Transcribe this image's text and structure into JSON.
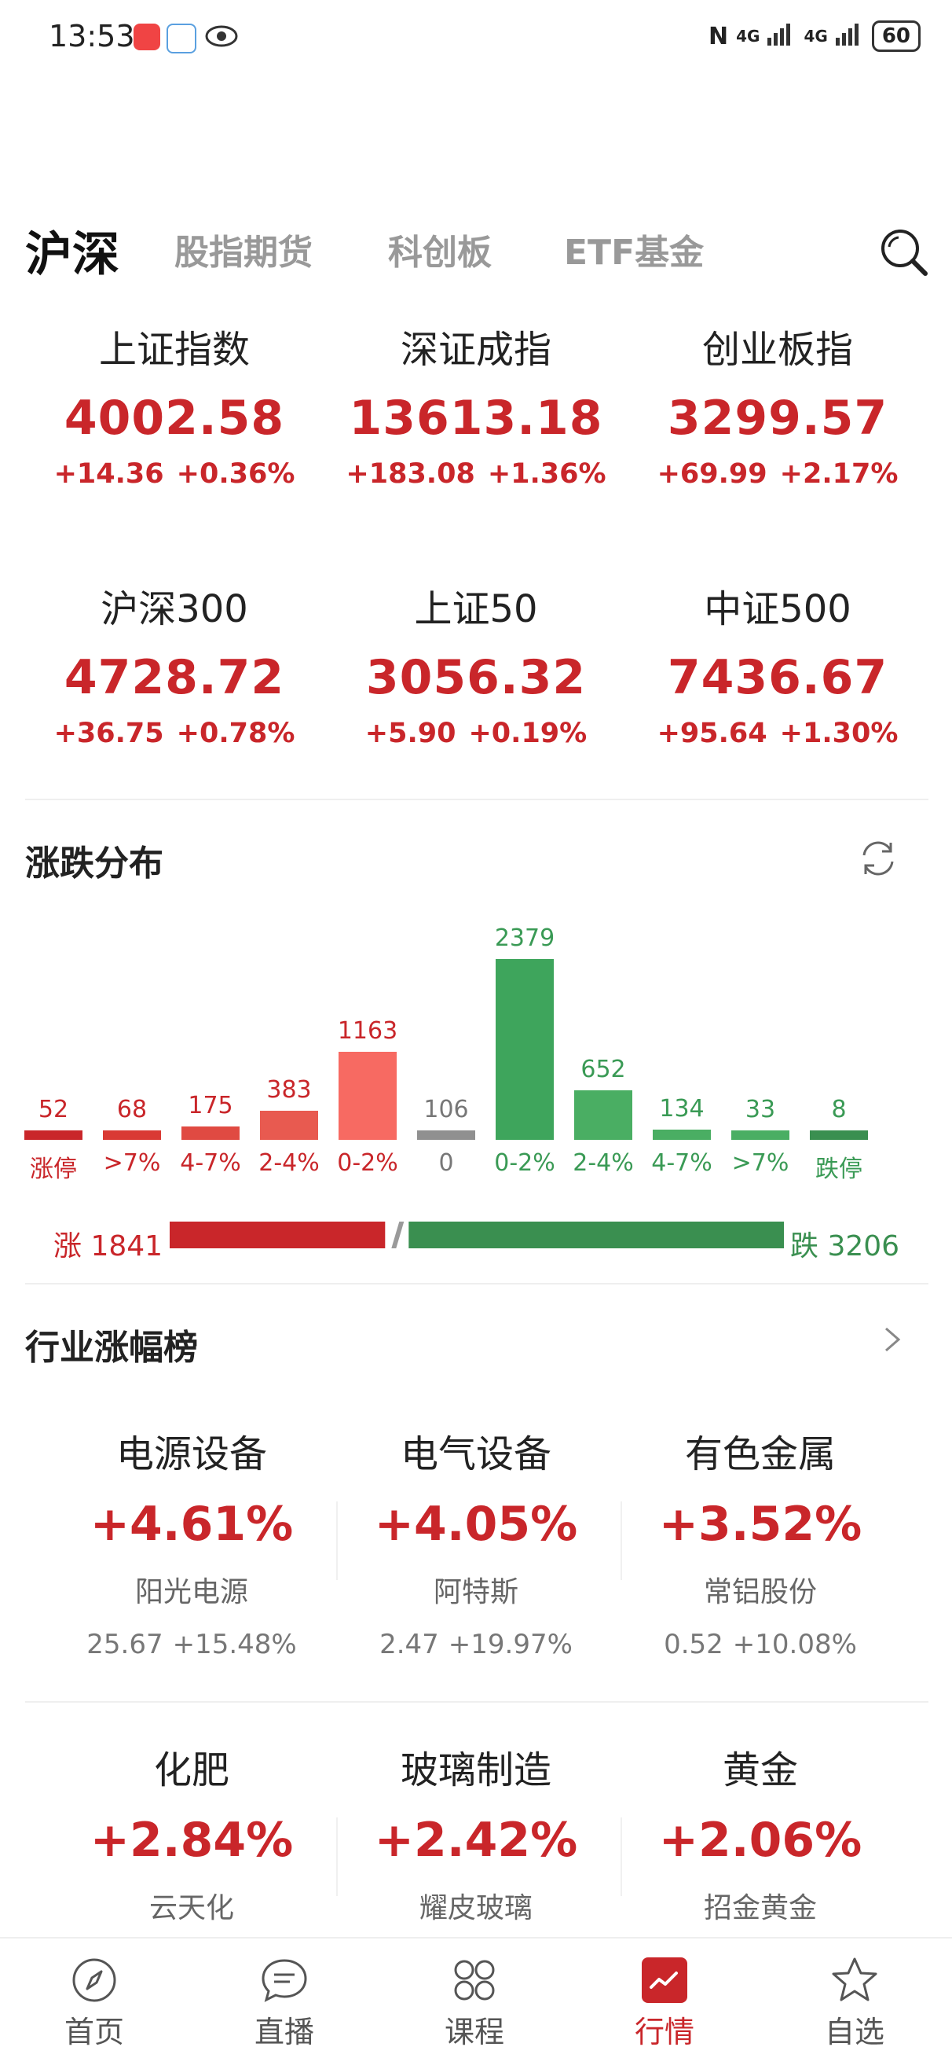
{
  "status_bar": {
    "time": "13:53",
    "network_1": "4G",
    "network_2": "4G",
    "battery": "60"
  },
  "tabs": [
    {
      "label": "沪深",
      "active": true
    },
    {
      "label": "股指期货",
      "active": false
    },
    {
      "label": "科创板",
      "active": false
    },
    {
      "label": "ETF基金",
      "active": false
    }
  ],
  "indices": [
    {
      "name": "上证指数",
      "value": "4002.58",
      "change": "+14.36",
      "pct": "+0.36%"
    },
    {
      "name": "深证成指",
      "value": "13613.18",
      "change": "+183.08",
      "pct": "+1.36%"
    },
    {
      "name": "创业板指",
      "value": "3299.57",
      "change": "+69.99",
      "pct": "+2.17%"
    },
    {
      "name": "沪深300",
      "value": "4728.72",
      "change": "+36.75",
      "pct": "+0.78%"
    },
    {
      "name": "上证50",
      "value": "3056.32",
      "change": "+5.90",
      "pct": "+0.19%"
    },
    {
      "name": "中证500",
      "value": "7436.67",
      "change": "+95.64",
      "pct": "+1.30%"
    }
  ],
  "distribution": {
    "title": "涨跌分布",
    "rise_label": "涨",
    "rise_count": "1841",
    "fall_label": "跌",
    "fall_count": "3206"
  },
  "chart_data": {
    "type": "bar",
    "categories": [
      "涨停",
      ">7%",
      "4-7%",
      "2-4%",
      "0-2%",
      "0",
      "0-2%",
      "2-4%",
      "4-7%",
      ">7%",
      "跌停"
    ],
    "values": [
      52,
      68,
      175,
      383,
      1163,
      106,
      2379,
      652,
      134,
      33,
      8
    ],
    "colors": [
      "#c9262a",
      "#d93a34",
      "#e04a42",
      "#e85a50",
      "#f76a62",
      "#909090",
      "#3ea55c",
      "#4aae63",
      "#4aae63",
      "#4aae63",
      "#3a8f50"
    ],
    "label_colors": [
      "#c9262a",
      "#c9262a",
      "#c9262a",
      "#c9262a",
      "#c9262a",
      "#777777",
      "#3a9a55",
      "#3a9a55",
      "#3a9a55",
      "#3a9a55",
      "#3a9a55"
    ]
  },
  "industry": {
    "title": "行业涨幅榜",
    "items": [
      {
        "name": "电源设备",
        "pct": "+4.61%",
        "stock": "阳光电源",
        "price": "25.67",
        "stock_pct": "+15.48%"
      },
      {
        "name": "电气设备",
        "pct": "+4.05%",
        "stock": "阿特斯",
        "price": "2.47",
        "stock_pct": "+19.97%"
      },
      {
        "name": "有色金属",
        "pct": "+3.52%",
        "stock": "常铝股份",
        "price": "0.52",
        "stock_pct": "+10.08%"
      },
      {
        "name": "化肥",
        "pct": "+2.84%",
        "stock": "云天化",
        "price": "",
        "stock_pct": ""
      },
      {
        "name": "玻璃制造",
        "pct": "+2.42%",
        "stock": "耀皮玻璃",
        "price": "",
        "stock_pct": ""
      },
      {
        "name": "黄金",
        "pct": "+2.06%",
        "stock": "招金黄金",
        "price": "",
        "stock_pct": ""
      }
    ]
  },
  "bottom_nav": [
    {
      "label": "首页",
      "icon": "compass-icon",
      "active": false
    },
    {
      "label": "直播",
      "icon": "chat-icon",
      "active": false
    },
    {
      "label": "课程",
      "icon": "grid-icon",
      "active": false
    },
    {
      "label": "行情",
      "icon": "chart-icon",
      "active": true
    },
    {
      "label": "自选",
      "icon": "star-icon",
      "active": false
    }
  ],
  "colors": {
    "rise": "#c9262a",
    "fall": "#3a8f50",
    "accent": "#c9262a"
  }
}
